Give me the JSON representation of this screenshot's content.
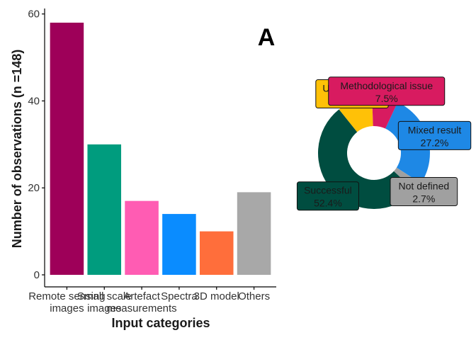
{
  "chart_data": [
    {
      "type": "bar",
      "panel_label": "A",
      "categories": [
        "Remote sensing images",
        "Small scale images",
        "Artefact measurements",
        "Spectra",
        "3D model",
        "Others"
      ],
      "tick_lines": [
        [
          "Remote sensing",
          "images"
        ],
        [
          "Small scale",
          "images"
        ],
        [
          "Artefact",
          "measurements"
        ],
        [
          "Spectra"
        ],
        [
          "3D model"
        ],
        [
          "Others"
        ]
      ],
      "values": [
        58,
        30,
        17,
        14,
        10,
        19
      ],
      "colors": [
        "#9e0059",
        "#009c7e",
        "#ff5cb3",
        "#0a8cff",
        "#ff6e3b",
        "#a8a8a8"
      ],
      "xlabel": "Input categories",
      "ylabel": "Number of observations (n =148)",
      "ylim": [
        0,
        62
      ],
      "yticks": [
        0,
        20,
        40,
        60
      ],
      "grid": false
    },
    {
      "type": "pie",
      "donut": true,
      "slices": [
        {
          "label": "Mixed result",
          "value": 27.2,
          "text": "27.2%",
          "color": "#1e88e5"
        },
        {
          "label": "Not defined",
          "value": 2.7,
          "text": "2.7%",
          "color": "#a0a0a0"
        },
        {
          "label": "Successful",
          "value": 52.4,
          "text": "52.4%",
          "color": "#004d40"
        },
        {
          "label": "Unsuccessful",
          "value": 10.2,
          "text": "10.2%",
          "color": "#ffc107"
        },
        {
          "label": "Methodological issue",
          "value": 7.5,
          "text": "7.5%",
          "color": "#d81b60"
        }
      ]
    }
  ]
}
